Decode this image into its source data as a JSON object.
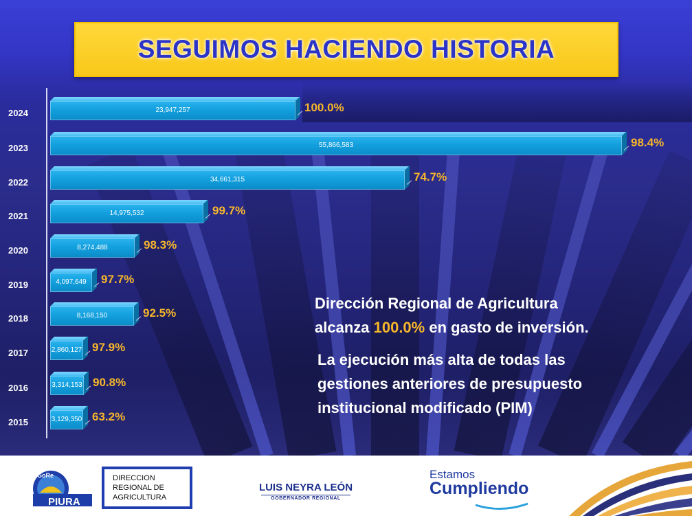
{
  "header": {
    "title": "SEGUIMOS HACIENDO HISTORIA"
  },
  "chart_data": {
    "type": "bar",
    "orientation": "horizontal",
    "categories": [
      "2024",
      "2023",
      "2022",
      "2021",
      "2020",
      "2019",
      "2018",
      "2017",
      "2016",
      "2015"
    ],
    "series": [
      {
        "values": [
          23947257,
          55866583,
          34661315,
          14975532,
          8274488,
          4097649,
          8168150,
          2860127,
          3314153,
          3129350
        ]
      }
    ],
    "value_labels": [
      "23,947,257",
      "55,866,583",
      "34,661,315",
      "14,975,532",
      "8,274,488",
      "4,097,649",
      "8,168,150",
      "2,860,127",
      "3,314,153",
      "3,129,350"
    ],
    "percent_labels": [
      "100.0%",
      "98.4%",
      "74.7%",
      "99.7%",
      "98.3%",
      "97.7%",
      "92.5%",
      "97.9%",
      "90.8%",
      "63.2%"
    ],
    "percent_values": [
      100.0,
      98.4,
      74.7,
      99.7,
      98.3,
      97.7,
      92.5,
      97.9,
      90.8,
      63.2
    ],
    "title": "",
    "xlabel": "",
    "ylabel": "",
    "xlim": [
      0,
      55866583
    ],
    "grid": false,
    "bar_color": "#13a0de",
    "percent_color": "#f7b62a"
  },
  "message": {
    "line1": "Dirección Regional de Agricultura",
    "line2_pre": "alcanza ",
    "line2_highlight": "100.0%",
    "line2_post": " en gasto de inversión.",
    "line3": "La ejecución más alta de todas las",
    "line4": "gestiones anteriores de presupuesto",
    "line5": "institucional modificado (PIM)"
  },
  "footer": {
    "gore_logo_text": "GoRe PIURA",
    "dra_line1": "DIRECCION",
    "dra_line2": "REGIONAL DE",
    "dra_line3": "AGRICULTURA",
    "governor_name": "LUIS NEYRA LEÓN",
    "governor_role": "GOBERNADOR REGIONAL",
    "slogan_top": "Estamos",
    "slogan_bottom": "Cumpliendo"
  },
  "colors": {
    "title_bg": "#f8c81a",
    "title_text": "#2b34c6",
    "background": "#2b2c8c",
    "footer_blue": "#1f3a9e"
  }
}
